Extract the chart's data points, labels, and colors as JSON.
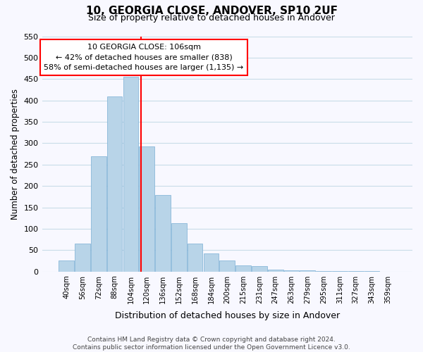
{
  "title": "10, GEORGIA CLOSE, ANDOVER, SP10 2UF",
  "subtitle": "Size of property relative to detached houses in Andover",
  "xlabel": "Distribution of detached houses by size in Andover",
  "ylabel": "Number of detached properties",
  "bin_labels": [
    "40sqm",
    "56sqm",
    "72sqm",
    "88sqm",
    "104sqm",
    "120sqm",
    "136sqm",
    "152sqm",
    "168sqm",
    "184sqm",
    "200sqm",
    "215sqm",
    "231sqm",
    "247sqm",
    "263sqm",
    "279sqm",
    "295sqm",
    "311sqm",
    "327sqm",
    "343sqm",
    "359sqm"
  ],
  "bar_heights": [
    25,
    65,
    270,
    410,
    455,
    293,
    179,
    113,
    66,
    43,
    26,
    15,
    12,
    4,
    2,
    2,
    1,
    1,
    1,
    1,
    0
  ],
  "bar_color": "#b8d4e8",
  "bar_edge_color": "#7bafd4",
  "vline_x": 4.625,
  "vline_color": "red",
  "annotation_title": "10 GEORGIA CLOSE: 106sqm",
  "annotation_line1": "← 42% of detached houses are smaller (838)",
  "annotation_line2": "58% of semi-detached houses are larger (1,135) →",
  "annotation_box_color": "white",
  "annotation_box_edge": "red",
  "ylim": [
    0,
    550
  ],
  "yticks": [
    0,
    50,
    100,
    150,
    200,
    250,
    300,
    350,
    400,
    450,
    500,
    550
  ],
  "footer1": "Contains HM Land Registry data © Crown copyright and database right 2024.",
  "footer2": "Contains public sector information licensed under the Open Government Licence v3.0.",
  "bg_color": "#f8f8ff"
}
